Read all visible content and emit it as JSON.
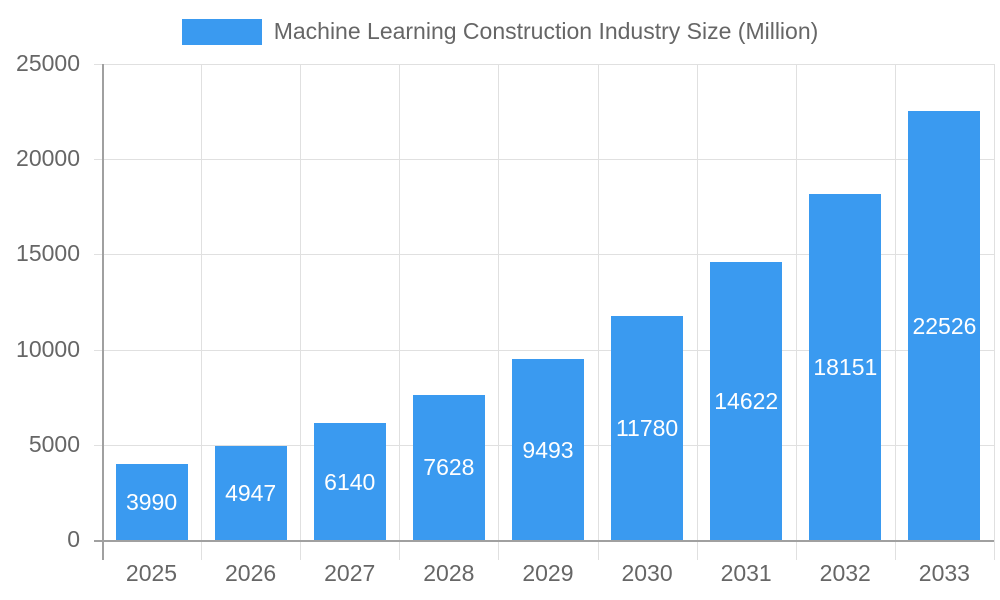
{
  "chart_data": {
    "type": "bar",
    "title": "",
    "legend": [
      "Machine Learning Construction Industry Size (Million)"
    ],
    "legend_position": "top",
    "categories": [
      "2025",
      "2026",
      "2027",
      "2028",
      "2029",
      "2030",
      "2031",
      "2032",
      "2033"
    ],
    "series": [
      {
        "name": "Machine Learning Construction Industry Size (Million)",
        "values": [
          3990,
          4947,
          6140,
          7628,
          9493,
          11780,
          14622,
          18151,
          22526
        ],
        "color": "#3a9af0"
      }
    ],
    "xlabel": "",
    "ylabel": "",
    "ylim": [
      0,
      25000
    ],
    "yticks": [
      "0",
      "5000",
      "10000",
      "15000",
      "20000",
      "25000"
    ],
    "grid": true,
    "data_labels": true
  },
  "legend": {
    "label": "Machine Learning Construction Industry Size (Million)",
    "color": "#3a9af0"
  }
}
